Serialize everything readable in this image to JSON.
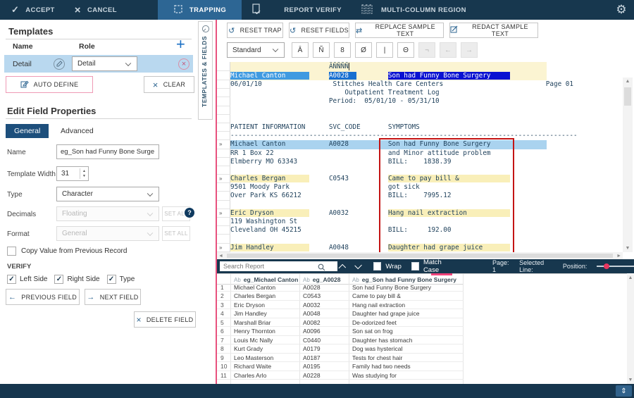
{
  "topbar": {
    "accept": "ACCEPT",
    "cancel": "CANCEL",
    "trapping": "TRAPPING",
    "report_verify": "REPORT VERIFY",
    "multi_column": "MULTI-COLUMN REGION"
  },
  "templates_panel": {
    "title": "Templates",
    "name_header": "Name",
    "role_header": "Role",
    "add_label": "+",
    "row": {
      "name": "Detail",
      "role": "Detail"
    },
    "auto_define": "AUTO DEFINE",
    "clear": "CLEAR"
  },
  "field_props": {
    "title": "Edit Field Properties",
    "tab_general": "General",
    "tab_advanced": "Advanced",
    "name_label": "Name",
    "name_value": "eg_Son had Funny Bone Surge",
    "template_width_label": "Template Width",
    "template_width_value": "31",
    "type_label": "Type",
    "type_value": "Character",
    "decimals_label": "Decimals",
    "decimals_value": "Floating",
    "format_label": "Format",
    "format_value": "General",
    "set_all": "SET ALL",
    "help": "?",
    "copy_value_label": "Copy Value from Previous Record",
    "verify_label": "VERIFY",
    "verify_checks": [
      "Left Side",
      "Right Side",
      "Type"
    ],
    "prev_label": "PREVIOUS FIELD",
    "next_label": "NEXT FIELD",
    "delete_label": "DELETE FIELD"
  },
  "side_tab": {
    "label": "TEMPLATES & FIELDS"
  },
  "report_toolbar": {
    "reset_trap": "RESET TRAP",
    "reset_fields": "RESET FIELDS",
    "replace_sample": "REPLACE SAMPLE TEXT",
    "redact_sample": "REDACT SAMPLE TEXT",
    "trap_mode": "Standard",
    "trap_chars": [
      "Ā",
      "Ñ",
      "8",
      "Ø",
      "|",
      "Θ"
    ],
    "trap_chars_disabled": [
      "¬",
      "←",
      "→"
    ]
  },
  "report": {
    "lines": [
      {
        "h": 13,
        "bg": "trap",
        "s": [
          {
            "t": "                         "
          },
          {
            "t": "ĀÑÑÑÑ",
            "bg": "cursor"
          }
        ]
      },
      {
        "h": 13,
        "bg": "trap",
        "s": [
          {
            "t": "Michael Canton      ",
            "bg": "fname"
          },
          {
            "t": "     "
          },
          {
            "t": "A0028  ",
            "bg": "fcode"
          },
          {
            "t": "        "
          },
          {
            "t": "Son had Funny Bone Surgery     ",
            "bg": "fsym"
          }
        ]
      },
      {
        "s": [
          {
            "t": "06/01/10                  Stitches Health Care Centers                          Page 01"
          }
        ]
      },
      {
        "s": [
          {
            "t": "                             Outpatient Treatment Log"
          }
        ]
      },
      {
        "s": [
          {
            "t": "                         Period:  05/01/10 - 05/31/10"
          }
        ]
      },
      {
        "s": [
          {
            "t": ""
          }
        ]
      },
      {
        "s": [
          {
            "t": ""
          }
        ]
      },
      {
        "s": [
          {
            "t": "PATIENT INFORMATION      SVC_CODE       SYMPTOMS"
          }
        ]
      },
      {
        "s": [
          {
            "t": "----------------------------------------------------------------------------------------"
          }
        ]
      },
      {
        "g": "»",
        "bg": "sel",
        "s": [
          {
            "t": "Michael Canton           A0028          Son had Funny Bone Surgery"
          }
        ]
      },
      {
        "s": [
          {
            "t": "RR 1 Box 22                             and Minor attitude problem"
          }
        ]
      },
      {
        "s": [
          {
            "t": "Elmberry MO 63343                       BILL:    1838.39"
          }
        ]
      },
      {
        "s": [
          {
            "t": ""
          }
        ]
      },
      {
        "g": "»",
        "s": [
          {
            "t": "Charles Bergan      ",
            "bg": "cy"
          },
          {
            "t": "     "
          },
          {
            "t": "C0543"
          },
          {
            "t": "          "
          },
          {
            "t": "Came to pay bill &             ",
            "bg": "cy"
          }
        ]
      },
      {
        "s": [
          {
            "t": "9501 Moody Park                         got sick"
          }
        ]
      },
      {
        "s": [
          {
            "t": "Over Park KS 66212                      BILL:    7995.12"
          }
        ]
      },
      {
        "s": [
          {
            "t": ""
          }
        ]
      },
      {
        "g": "»",
        "s": [
          {
            "t": "Eric Dryson         ",
            "bg": "cy"
          },
          {
            "t": "     "
          },
          {
            "t": "A0032"
          },
          {
            "t": "          "
          },
          {
            "t": "Hang nail extraction           ",
            "bg": "cy"
          }
        ]
      },
      {
        "s": [
          {
            "t": "119 Washington St"
          }
        ]
      },
      {
        "s": [
          {
            "t": "Cleveland OH 45215                      BILL:     192.00"
          }
        ]
      },
      {
        "s": [
          {
            "t": ""
          }
        ]
      },
      {
        "g": "»",
        "s": [
          {
            "t": "Jim Handley         ",
            "bg": "cy"
          },
          {
            "t": "     "
          },
          {
            "t": "A0048"
          },
          {
            "t": "          "
          },
          {
            "t": "Daughter had grape juice       ",
            "bg": "cy"
          }
        ]
      }
    ]
  },
  "search_bar": {
    "placeholder": "Search Report",
    "wrap_label": "Wrap",
    "match_case_label": "Match Case",
    "page_label": "Page: 1",
    "selected_line_label": "Selected Line:",
    "position_label": "Position:"
  },
  "table": {
    "columns": [
      {
        "type": "Ab",
        "label": "eg_Michael Canton",
        "width": 98
      },
      {
        "type": "Ab",
        "label": "eg_A0028",
        "width": 70
      },
      {
        "type": "Ab",
        "label": "eg_Son had Funny Bone Surgery",
        "width": 162
      }
    ],
    "rows": [
      [
        "1",
        "Michael Canton",
        "A0028",
        "Son had Funny Bone Surgery"
      ],
      [
        "2",
        "Charles Bergan",
        "C0543",
        "Came to pay bill &"
      ],
      [
        "3",
        "Eric Dryson",
        "A0032",
        "Hang nail extraction"
      ],
      [
        "4",
        "Jim Handley",
        "A0048",
        "Daughter had grape juice"
      ],
      [
        "5",
        "Marshall Briar",
        "A0082",
        "De-odorized feet"
      ],
      [
        "6",
        "Henry Thornton",
        "A0096",
        "Son sat on frog"
      ],
      [
        "7",
        "Louis Mc Nally",
        "C0440",
        "Daughter has stomach"
      ],
      [
        "8",
        "Kurt Grady",
        "A0179",
        "Dog was hysterical"
      ],
      [
        "9",
        "Leo Masterson",
        "A0187",
        "Tests for chest hair"
      ],
      [
        "10",
        "Richard Waite",
        "A0195",
        "Family had two needs"
      ],
      [
        "11",
        "Charles Arlo",
        "A0228",
        "Was studying for"
      ],
      [
        "",
        "",
        "",
        ""
      ]
    ]
  },
  "colors": {
    "topbar": "#17374e",
    "accent_pink": "#e8517e",
    "trap_yellow": "#fbf4d2",
    "selected_row_blue": "#aad3ef",
    "field_navy": "#0a12d2",
    "red_region": "#c41414"
  }
}
